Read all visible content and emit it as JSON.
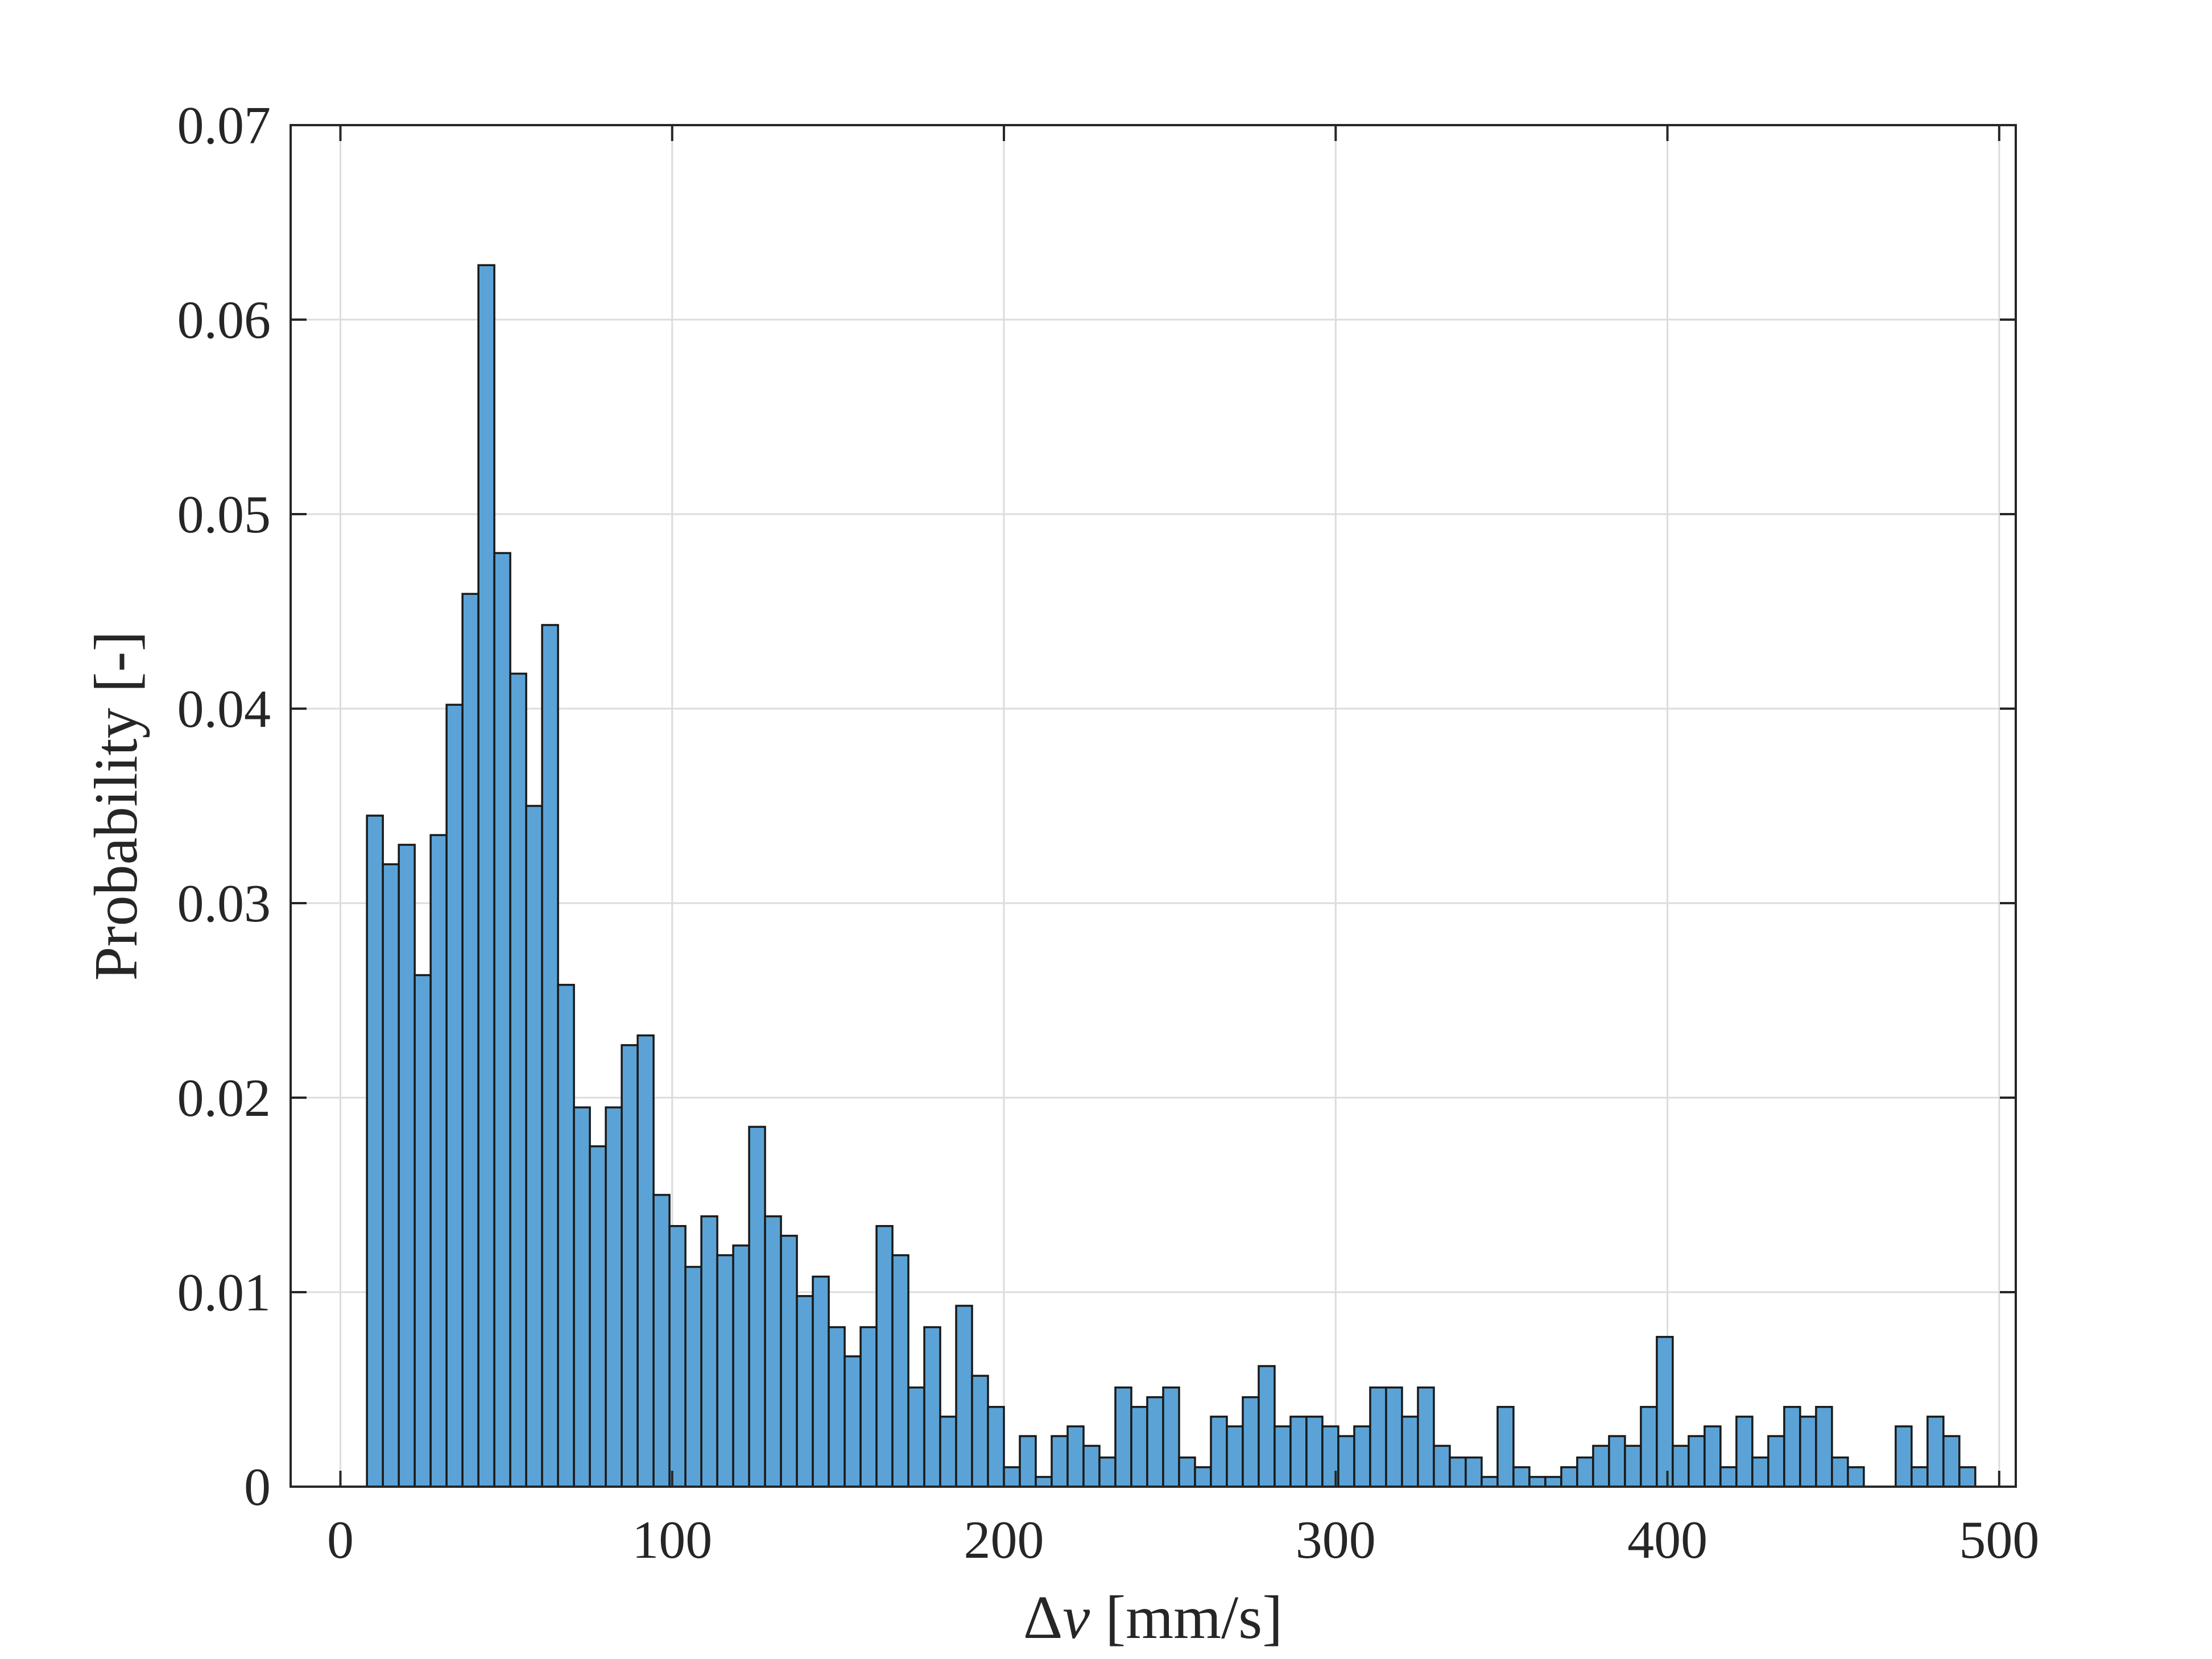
{
  "chart_data": {
    "type": "bar",
    "subtype": "histogram",
    "xlabel_prefix": "Δ",
    "xlabel_var": "v",
    "xlabel_unit": " [mm/s]",
    "ylabel": "Probability [-]",
    "xlim": [
      -15,
      505
    ],
    "ylim": [
      0,
      0.07
    ],
    "xticks": [
      0,
      100,
      200,
      300,
      400,
      500
    ],
    "yticks": [
      0,
      0.01,
      0.02,
      0.03,
      0.04,
      0.05,
      0.06,
      0.07
    ],
    "xtick_labels": [
      "0",
      "100",
      "200",
      "300",
      "400",
      "500"
    ],
    "ytick_labels": [
      "0",
      "0.01",
      "0.02",
      "0.03",
      "0.04",
      "0.05",
      "0.06",
      "0.07"
    ],
    "grid": true,
    "bar_color": "#5ba3d6",
    "edge_color": "#1a1a1a",
    "bin_start": 8,
    "bin_width": 4.8,
    "values": [
      0.0345,
      0.032,
      0.033,
      0.0263,
      0.0335,
      0.0402,
      0.0459,
      0.0628,
      0.048,
      0.0418,
      0.035,
      0.0443,
      0.0258,
      0.0195,
      0.0175,
      0.0195,
      0.0227,
      0.0232,
      0.015,
      0.0134,
      0.0113,
      0.0139,
      0.0119,
      0.0124,
      0.0185,
      0.0139,
      0.0129,
      0.0098,
      0.0108,
      0.0082,
      0.0067,
      0.0082,
      0.0134,
      0.0119,
      0.0051,
      0.0082,
      0.0036,
      0.0093,
      0.0057,
      0.0041,
      0.001,
      0.0026,
      0.0005,
      0.0026,
      0.0031,
      0.0021,
      0.0015,
      0.0051,
      0.0041,
      0.0046,
      0.0051,
      0.0015,
      0.001,
      0.0036,
      0.0031,
      0.0046,
      0.0062,
      0.0031,
      0.0036,
      0.0036,
      0.0031,
      0.0026,
      0.0031,
      0.0051,
      0.0051,
      0.0036,
      0.0051,
      0.0021,
      0.0015,
      0.0015,
      0.0005,
      0.0041,
      0.001,
      0.0005,
      0.0005,
      0.001,
      0.0015,
      0.0021,
      0.0026,
      0.0021,
      0.0041,
      0.0077,
      0.0021,
      0.0026,
      0.0031,
      0.001,
      0.0036,
      0.0015,
      0.0026,
      0.0041,
      0.0036,
      0.0041,
      0.0015,
      0.001,
      0.0,
      0.0,
      0.0031,
      0.001,
      0.0036,
      0.0026,
      0.001
    ]
  }
}
